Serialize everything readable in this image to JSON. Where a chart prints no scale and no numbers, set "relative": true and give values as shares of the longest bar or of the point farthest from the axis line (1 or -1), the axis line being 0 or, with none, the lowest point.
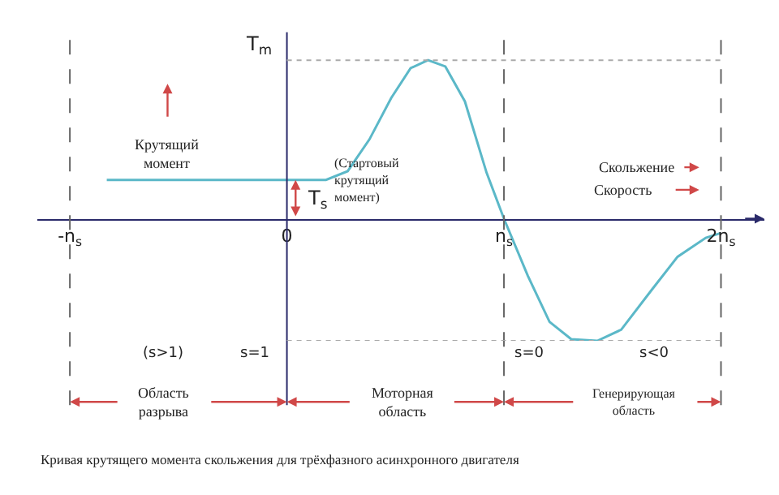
{
  "chart_data": {
    "type": "line",
    "relative": true,
    "ylabel": "T$_{m}$",
    "x": [
      -0.83,
      0.18,
      0.28,
      0.38,
      0.48,
      0.57,
      0.65,
      0.73,
      0.82,
      0.92,
      1.0,
      1.11,
      1.21,
      1.31,
      1.43,
      1.54,
      1.68,
      1.8,
      1.93,
      2.0
    ],
    "series": [
      {
        "color": "#5bb8c8",
        "values": [
          0.245,
          0.245,
          0.3,
          0.5,
          0.76,
          0.95,
          1.0,
          0.96,
          0.74,
          0.29,
          0.0,
          -0.36,
          -0.65,
          -0.76,
          -0.77,
          -0.7,
          -0.45,
          -0.24,
          -0.12,
          -0.09
        ]
      }
    ],
    "xlim": [
      -1.15,
      2.2
    ],
    "xticks": [
      {
        "value": -1,
        "label": "-n$_{s}$"
      },
      0,
      {
        "value": 1,
        "label": "n$_{s}$"
      },
      {
        "value": 2,
        "label": "2n$_{s}$"
      }
    ],
    "ref_lines": [
      {
        "axis": "x",
        "value": 0,
        "line_style": "solid",
        "color": "#2a2a6a"
      },
      {
        "axis": "x",
        "value": -1,
        "line_style": "dashed",
        "color": "#666666"
      },
      {
        "axis": "x",
        "value": 1,
        "line_style": "dashed",
        "color": "#666666"
      },
      {
        "axis": "x",
        "value": 2,
        "line_style": "dashed",
        "color": "#666666"
      },
      {
        "axis": "y",
        "value": 1,
        "line_style": "dotted",
        "color": "#aaaaaa"
      },
      {
        "axis": "y",
        "value": -0.77,
        "line_style": "dotted",
        "color": "#aaaaaa"
      }
    ],
    "annotations": [
      "Крутящий\nмомент",
      "(Стартовый\nкрутящий\nмомент)",
      "T$_{s}$",
      "Скольжение",
      "Скорость",
      "(s>1)",
      "s=1",
      "s=0",
      "s<0",
      "Область\nразрыва",
      "Моторная\nобласть",
      "Генерирующая\nобласть",
      "Кривая крутящего момента скольжения для трёхфазного асинхронного двигателя"
    ],
    "marker": "none",
    "line_style": "solid"
  }
}
